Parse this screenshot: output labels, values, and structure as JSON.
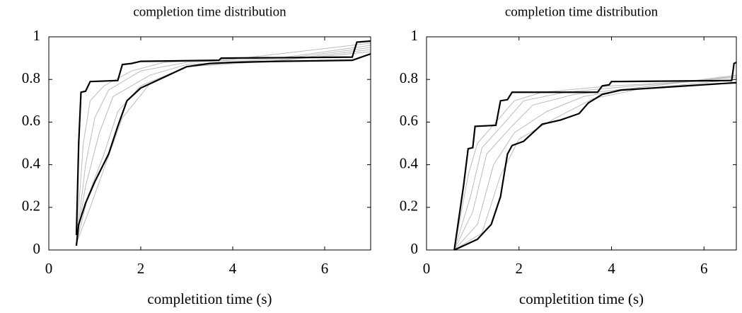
{
  "chart_data": [
    {
      "type": "line",
      "title": "completion time distribution",
      "x_label": "completition time (s)",
      "xlim": [
        0,
        7
      ],
      "ylim": [
        0,
        1
      ],
      "xticks": [
        0,
        2,
        4,
        6
      ],
      "yticks": [
        0,
        0.2,
        0.4,
        0.6,
        0.8,
        1
      ],
      "series": [
        {
          "color": "#bbbbbb",
          "x": [
            0.6,
            0.75,
            0.9,
            1.2,
            1.8,
            2.5,
            4,
            7
          ],
          "values": [
            0.05,
            0.5,
            0.7,
            0.77,
            0.84,
            0.88,
            0.895,
            0.97
          ]
        },
        {
          "color": "#bbbbbb",
          "x": [
            0.6,
            0.8,
            1.0,
            1.3,
            2.0,
            3,
            5,
            7
          ],
          "values": [
            0.04,
            0.4,
            0.62,
            0.75,
            0.84,
            0.88,
            0.9,
            0.96
          ]
        },
        {
          "color": "#bbbbbb",
          "x": [
            0.6,
            0.8,
            1.1,
            1.4,
            2.2,
            3,
            5,
            7
          ],
          "values": [
            0.04,
            0.3,
            0.55,
            0.72,
            0.82,
            0.87,
            0.895,
            0.95
          ]
        },
        {
          "color": "#bbbbbb",
          "x": [
            0.6,
            0.85,
            1.2,
            1.5,
            2.0,
            3,
            5,
            7
          ],
          "values": [
            0.03,
            0.25,
            0.45,
            0.65,
            0.77,
            0.86,
            0.89,
            0.94
          ]
        },
        {
          "color": "#bbbbbb",
          "x": [
            0.6,
            0.9,
            1.2,
            1.6,
            2.2,
            3,
            5,
            7
          ],
          "values": [
            0.03,
            0.2,
            0.38,
            0.62,
            0.78,
            0.86,
            0.888,
            0.93
          ]
        },
        {
          "color": "#000000",
          "x": [
            0.6,
            0.65,
            0.7,
            0.8,
            0.9,
            1.5,
            1.6,
            1.8,
            2.0,
            3.7,
            3.75,
            6.6,
            6.7,
            7
          ],
          "values": [
            0.07,
            0.5,
            0.74,
            0.745,
            0.79,
            0.795,
            0.87,
            0.875,
            0.885,
            0.89,
            0.9,
            0.905,
            0.975,
            0.98
          ]
        },
        {
          "color": "#000000",
          "x": [
            0.6,
            0.65,
            0.8,
            1.0,
            1.3,
            1.5,
            1.7,
            2.0,
            2.5,
            3.0,
            3.5,
            4.0,
            5.0,
            6.6,
            7
          ],
          "values": [
            0.02,
            0.12,
            0.22,
            0.32,
            0.45,
            0.58,
            0.7,
            0.76,
            0.81,
            0.86,
            0.875,
            0.88,
            0.885,
            0.89,
            0.92
          ]
        }
      ]
    },
    {
      "type": "line",
      "title": "completion time distribution",
      "x_label": "completition time (s)",
      "xlim": [
        0,
        6.7
      ],
      "ylim": [
        0,
        1
      ],
      "xticks": [
        0,
        2,
        4,
        6
      ],
      "yticks": [
        0,
        0.2,
        0.4,
        0.6,
        0.8,
        1
      ],
      "series": [
        {
          "color": "#bbbbbb",
          "x": [
            0.6,
            0.9,
            1.1,
            1.5,
            1.9,
            2.5,
            4,
            6.7
          ],
          "values": [
            0,
            0.35,
            0.5,
            0.6,
            0.7,
            0.74,
            0.77,
            0.8
          ]
        },
        {
          "color": "#bbbbbb",
          "x": [
            0.6,
            0.95,
            1.2,
            1.7,
            2.1,
            3,
            4.5,
            6.7
          ],
          "values": [
            0,
            0.25,
            0.48,
            0.6,
            0.7,
            0.74,
            0.77,
            0.81
          ]
        },
        {
          "color": "#bbbbbb",
          "x": [
            0.6,
            1.0,
            1.3,
            1.8,
            2.3,
            3.2,
            4.5,
            6.7
          ],
          "values": [
            0,
            0.18,
            0.45,
            0.57,
            0.68,
            0.73,
            0.76,
            0.815
          ]
        },
        {
          "color": "#bbbbbb",
          "x": [
            0.6,
            1.1,
            1.45,
            1.9,
            2.6,
            3.4,
            4.5,
            6.7
          ],
          "values": [
            0,
            0.12,
            0.4,
            0.55,
            0.65,
            0.72,
            0.76,
            0.82
          ]
        },
        {
          "color": "#bbbbbb",
          "x": [
            0.6,
            1.2,
            1.6,
            2.0,
            2.8,
            3.6,
            4.6,
            6.7
          ],
          "values": [
            0,
            0.08,
            0.35,
            0.52,
            0.62,
            0.71,
            0.755,
            0.8
          ]
        },
        {
          "color": "#000000",
          "x": [
            0.6,
            0.8,
            0.9,
            1.0,
            1.05,
            1.5,
            1.6,
            1.75,
            1.85,
            3.7,
            3.8,
            3.95,
            4.0,
            6.6,
            6.65,
            6.7
          ],
          "values": [
            0,
            0.3,
            0.475,
            0.48,
            0.58,
            0.585,
            0.7,
            0.705,
            0.74,
            0.74,
            0.77,
            0.775,
            0.79,
            0.795,
            0.875,
            0.88
          ]
        },
        {
          "color": "#000000",
          "x": [
            0.6,
            0.8,
            1.1,
            1.4,
            1.6,
            1.75,
            1.85,
            2.1,
            2.3,
            2.5,
            2.9,
            3.3,
            3.5,
            3.8,
            4.2,
            6.7
          ],
          "values": [
            0,
            0.02,
            0.05,
            0.12,
            0.25,
            0.45,
            0.49,
            0.51,
            0.55,
            0.59,
            0.61,
            0.64,
            0.69,
            0.73,
            0.75,
            0.785
          ]
        }
      ]
    }
  ]
}
